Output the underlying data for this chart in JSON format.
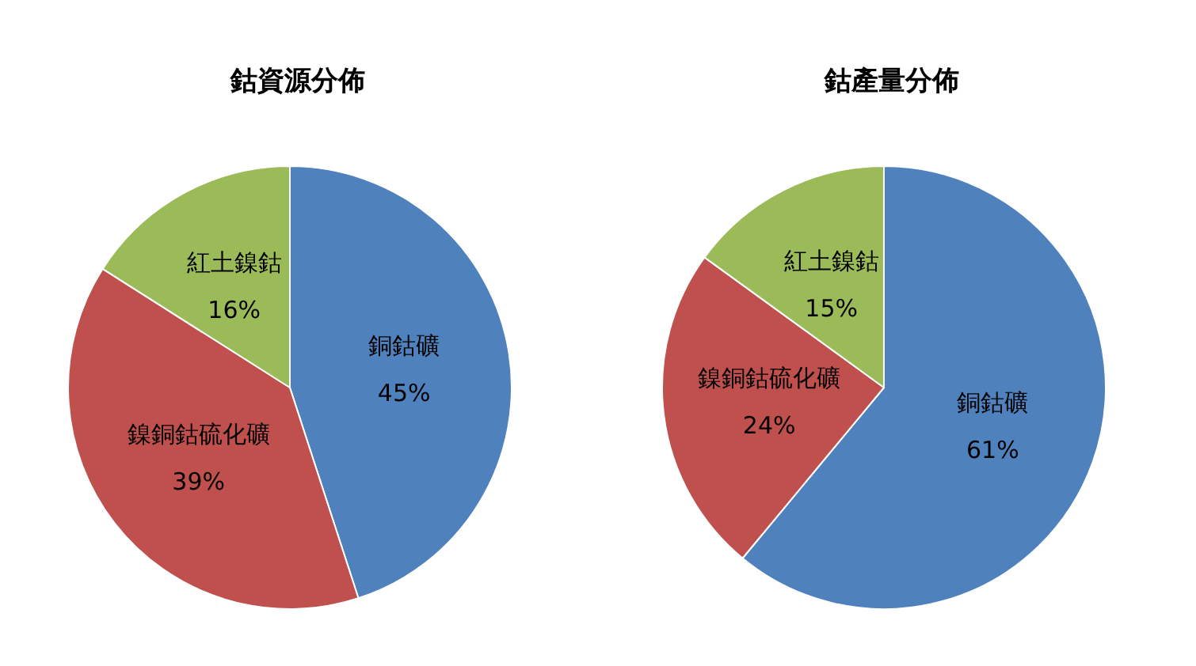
{
  "chart_data": [
    {
      "type": "pie",
      "title": "鈷資源分佈",
      "categories": [
        "銅鈷礦",
        "鎳銅鈷硫化礦",
        "紅土鎳鈷"
      ],
      "values": [
        45,
        39,
        16
      ],
      "value_labels": [
        "45%",
        "39%",
        "16%"
      ],
      "colors": [
        "#4f81bd",
        "#c0504d",
        "#9bbb59"
      ],
      "legend": false
    },
    {
      "type": "pie",
      "title": "鈷產量分佈",
      "categories": [
        "銅鈷礦",
        "鎳銅鈷硫化礦",
        "紅土鎳鈷"
      ],
      "values": [
        61,
        24,
        15
      ],
      "value_labels": [
        "61%",
        "24%",
        "15%"
      ],
      "colors": [
        "#4f81bd",
        "#c0504d",
        "#9bbb59"
      ],
      "legend": false
    }
  ]
}
